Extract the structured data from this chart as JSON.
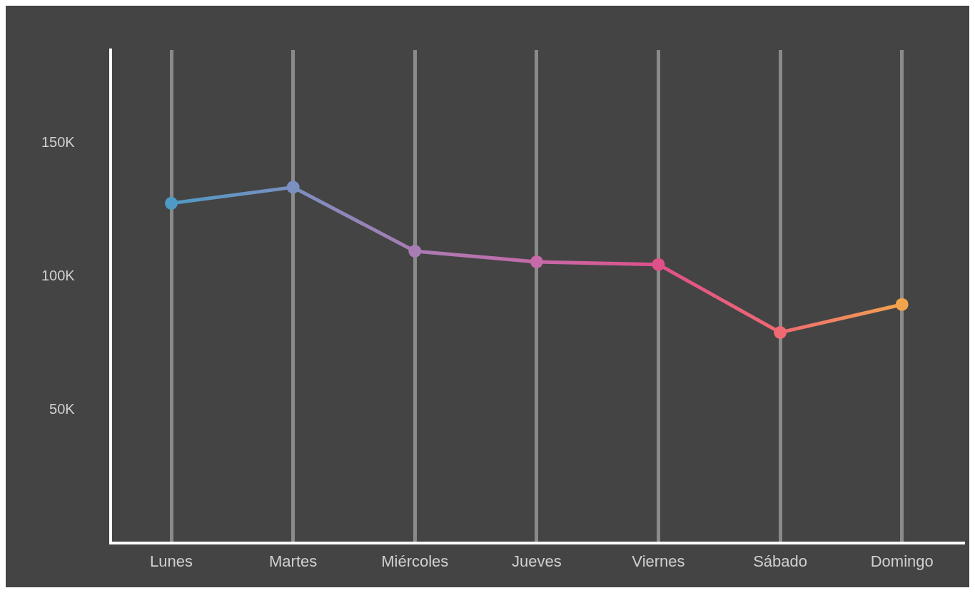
{
  "chart_data": {
    "type": "line",
    "categories": [
      "Lunes",
      "Martes",
      "Miércoles",
      "Jueves",
      "Viernes",
      "Sábado",
      "Domingo"
    ],
    "series": [
      {
        "colors": [
          "#4f9ac4",
          "#7b8fc0",
          "#a97cb3",
          "#c66aa8",
          "#e0508a",
          "#ef6a72",
          "#f2a44c"
        ],
        "values": [
          127.5,
          133.5,
          109.5,
          105.5,
          104.5,
          79,
          89.5
        ]
      }
    ],
    "ylim": [
      0,
      185
    ],
    "yticks": [
      {
        "value": 50,
        "label": "50K"
      },
      {
        "value": 100,
        "label": "100K"
      },
      {
        "value": 150,
        "label": "150K"
      }
    ],
    "grid": "x",
    "legend": false,
    "marker": "circle",
    "line_style": "solid"
  }
}
